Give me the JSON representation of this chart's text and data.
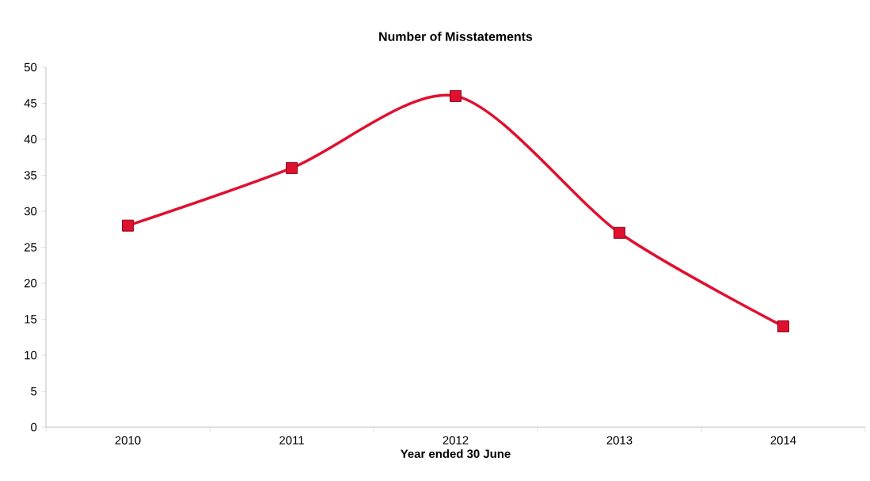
{
  "chart_data": {
    "type": "line",
    "title": "Number of Misstatements",
    "xlabel": "Year ended 30 June",
    "categories": [
      "2010",
      "2011",
      "2012",
      "2013",
      "2014"
    ],
    "series": [
      {
        "color": "#e0102f",
        "values": [
          28,
          36,
          46,
          27,
          14
        ]
      }
    ],
    "ylim": [
      0,
      50
    ],
    "yticks": [
      0,
      5,
      10,
      15,
      20,
      25,
      30,
      35,
      40,
      45,
      50
    ],
    "grid": false,
    "legend": false,
    "marker": "square",
    "line_style": "solid"
  }
}
